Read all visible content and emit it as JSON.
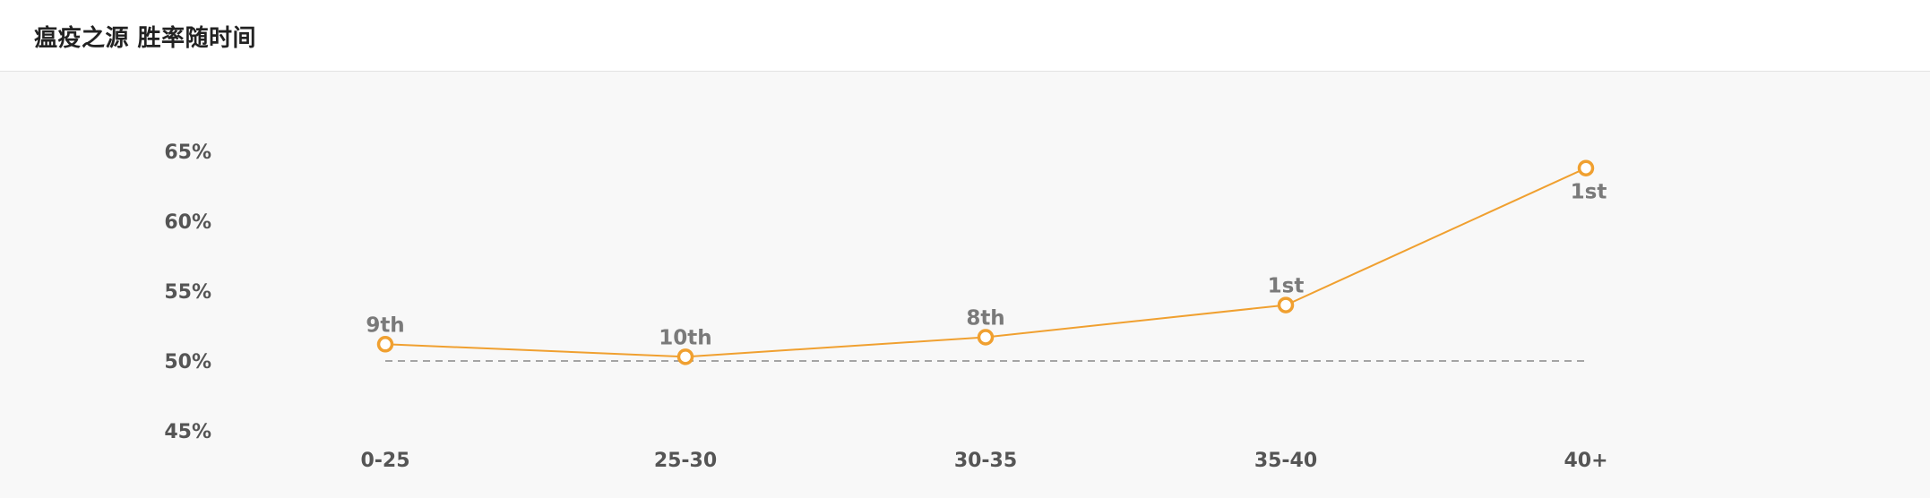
{
  "header": {
    "title": "瘟疫之源 胜率随时间"
  },
  "chart_data": {
    "type": "line",
    "title": "瘟疫之源 胜率随时间",
    "xlabel": "",
    "ylabel": "",
    "categories": [
      "0-25",
      "25-30",
      "30-35",
      "35-40",
      "40+"
    ],
    "series": [
      {
        "name": "胜率",
        "values": [
          51.2,
          50.3,
          51.7,
          54.0,
          63.8
        ],
        "labels": [
          "9th",
          "10th",
          "8th",
          "1st",
          "1st"
        ]
      }
    ],
    "reference_line": {
      "value": 50,
      "style": "dashed"
    },
    "ylim": [
      45,
      65
    ],
    "yticks": [
      65,
      60,
      55,
      50,
      45
    ],
    "ytick_labels": [
      "65%",
      "60%",
      "55%",
      "50%",
      "45%"
    ],
    "colors": {
      "line": "#f0a030",
      "reference": "#888888"
    }
  }
}
